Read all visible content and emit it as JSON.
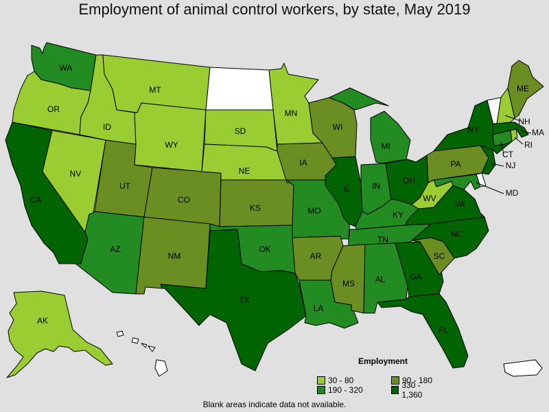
{
  "title": "Employment of animal control workers, by state, May 2019",
  "legend": {
    "title": "Employment",
    "classes": [
      {
        "label": "30 - 80",
        "color": "#9acd32"
      },
      {
        "label": "90 - 180",
        "color": "#6b8e23"
      },
      {
        "label": "190 - 320",
        "color": "#228b22"
      },
      {
        "label": "330 - 1,360",
        "color": "#006400"
      }
    ]
  },
  "no_data_color": "#ffffff",
  "note": "Blank areas indicate data not available.",
  "states": {
    "WA": {
      "label": "WA",
      "class": 2
    },
    "OR": {
      "label": "OR",
      "class": 0
    },
    "CA": {
      "label": "CA",
      "class": 3
    },
    "NV": {
      "label": "NV",
      "class": 0
    },
    "ID": {
      "label": "ID",
      "class": 0
    },
    "MT": {
      "label": "MT",
      "class": 0
    },
    "WY": {
      "label": "WY",
      "class": 0
    },
    "UT": {
      "label": "UT",
      "class": 1
    },
    "AZ": {
      "label": "AZ",
      "class": 2
    },
    "CO": {
      "label": "CO",
      "class": 1
    },
    "NM": {
      "label": "NM",
      "class": 1
    },
    "ND": {
      "label": "",
      "class": null
    },
    "SD": {
      "label": "SD",
      "class": 0
    },
    "NE": {
      "label": "NE",
      "class": 0
    },
    "KS": {
      "label": "KS",
      "class": 1
    },
    "OK": {
      "label": "OK",
      "class": 2
    },
    "TX": {
      "label": "TX",
      "class": 3
    },
    "MN": {
      "label": "MN",
      "class": 0
    },
    "IA": {
      "label": "IA",
      "class": 1
    },
    "MO": {
      "label": "MO",
      "class": 2
    },
    "AR": {
      "label": "AR",
      "class": 1
    },
    "LA": {
      "label": "LA",
      "class": 2
    },
    "WI": {
      "label": "WI",
      "class": 1
    },
    "IL": {
      "label": "IL",
      "class": 3
    },
    "MI": {
      "label": "MI",
      "class": 2
    },
    "IN": {
      "label": "IN",
      "class": 2
    },
    "OH": {
      "label": "OH",
      "class": 3
    },
    "KY": {
      "label": "KY",
      "class": 2
    },
    "TN": {
      "label": "TN",
      "class": 2
    },
    "MS": {
      "label": "MS",
      "class": 1
    },
    "AL": {
      "label": "AL",
      "class": 2
    },
    "GA": {
      "label": "GA",
      "class": 3
    },
    "FL": {
      "label": "FL",
      "class": 3
    },
    "SC": {
      "label": "SC",
      "class": 1
    },
    "NC": {
      "label": "NC",
      "class": 3
    },
    "VA": {
      "label": "VA",
      "class": 3
    },
    "WV": {
      "label": "WV",
      "class": 0
    },
    "MD": {
      "label": "MD",
      "class": 2
    },
    "DE": {
      "label": "",
      "class": null
    },
    "PA": {
      "label": "PA",
      "class": 1
    },
    "NJ": {
      "label": "NJ",
      "class": 3
    },
    "NY": {
      "label": "NY",
      "class": 3
    },
    "CT": {
      "label": "CT",
      "class": 2
    },
    "RI": {
      "label": "RI",
      "class": 0
    },
    "MA": {
      "label": "MA",
      "class": 3
    },
    "VT": {
      "label": "",
      "class": null
    },
    "NH": {
      "label": "NH",
      "class": 0
    },
    "ME": {
      "label": "ME",
      "class": 1
    },
    "AK": {
      "label": "AK",
      "class": 0
    },
    "HI": {
      "label": "",
      "class": null
    },
    "PR": {
      "label": "",
      "class": null
    }
  }
}
